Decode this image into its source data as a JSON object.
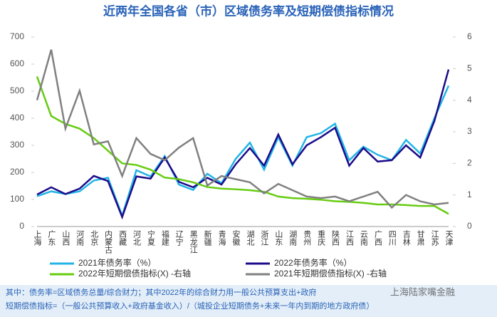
{
  "chart_data": {
    "type": "line",
    "title": "近两年全国各省（市）区域债务率及短期偿债指标情况",
    "categories": [
      "上海",
      "广东",
      "山西",
      "河南",
      "北京",
      "内蒙古",
      "西藏",
      "河北",
      "宁夏",
      "福建",
      "辽宁",
      "黑龙江",
      "新疆",
      "青海",
      "安徽",
      "湖北",
      "浙江",
      "山东",
      "湖南",
      "贵州",
      "重庆",
      "陕西",
      "江西",
      "云南",
      "广西",
      "四川",
      "吉林",
      "甘肃",
      "江苏",
      "天津"
    ],
    "series": [
      {
        "name": "2021年债务率（%）",
        "color": "#22b4e6",
        "values": [
          112,
          130,
          120,
          130,
          170,
          180,
          40,
          208,
          185,
          260,
          155,
          135,
          195,
          160,
          250,
          310,
          210,
          330,
          225,
          330,
          345,
          380,
          245,
          295,
          265,
          245,
          320,
          270,
          400,
          520
        ]
      },
      {
        "name": "2022年债务率（%）",
        "color": "#1c0c8a",
        "values": [
          118,
          145,
          120,
          140,
          187,
          168,
          35,
          185,
          177,
          255,
          165,
          145,
          180,
          155,
          230,
          290,
          225,
          340,
          230,
          300,
          330,
          365,
          225,
          290,
          240,
          245,
          300,
          255,
          390,
          580
        ]
      },
      {
        "name": "2022年短期偿债指标(X) -右轴",
        "color": "#66cc11",
        "axis": "y2",
        "values": [
          4.75,
          3.5,
          3.25,
          3.1,
          2.8,
          2.4,
          2.0,
          1.95,
          1.8,
          1.55,
          1.5,
          1.4,
          1.25,
          1.2,
          1.18,
          1.15,
          1.1,
          0.95,
          0.9,
          0.88,
          0.85,
          0.8,
          0.78,
          0.75,
          0.7,
          0.7,
          0.68,
          0.65,
          0.65,
          0.4
        ]
      },
      {
        "name": "2021年短期偿债指标(X) -右轴",
        "color": "#808080",
        "axis": "y2",
        "values": [
          4.0,
          5.6,
          3.1,
          4.3,
          2.6,
          2.7,
          1.6,
          2.8,
          2.3,
          2.1,
          2.5,
          2.8,
          1.3,
          1.6,
          1.5,
          1.4,
          1.05,
          1.35,
          1.15,
          0.95,
          0.9,
          0.95,
          0.8,
          0.95,
          1.1,
          0.6,
          1.0,
          0.8,
          0.7,
          0.75
        ]
      }
    ],
    "ylim": [
      0,
      700
    ],
    "yticks": [
      0,
      100,
      200,
      300,
      400,
      500,
      600,
      700
    ],
    "y2lim": [
      0,
      6
    ],
    "y2ticks": [
      0,
      1,
      2,
      3,
      4,
      5,
      6
    ],
    "notes": [
      "其中：债务率=区域债务总量/综合财力；其中2022年的综合财力用一般公共预算支出+政府",
      "短期偿债指标=（一般公共预算收入+政府基金收入）/（城投企业短期债务+未来一年内到期的地方政府债）"
    ],
    "watermark": "上海陆家嘴金融"
  }
}
